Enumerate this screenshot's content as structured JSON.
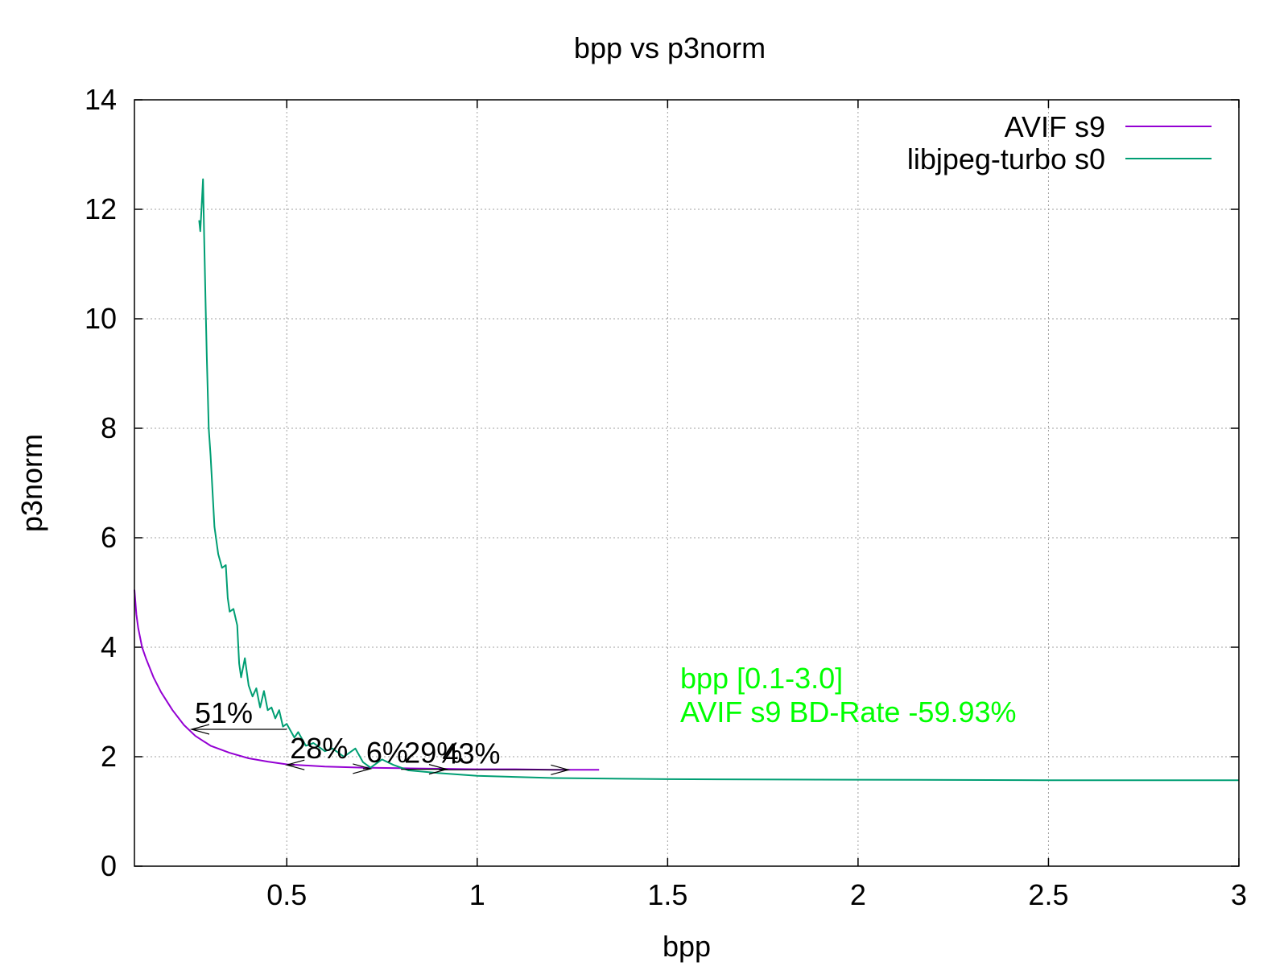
{
  "chart_data": {
    "type": "line",
    "title": "bpp vs p3norm",
    "xlabel": "bpp",
    "ylabel": "p3norm",
    "xlim": [
      0.1,
      3.0
    ],
    "ylim": [
      0,
      14
    ],
    "x_ticks": [
      0.5,
      1,
      1.5,
      2,
      2.5,
      3
    ],
    "x_tick_labels": [
      "0.5",
      "1",
      "1.5",
      "2",
      "2.5",
      "3"
    ],
    "y_ticks": [
      0,
      2,
      4,
      6,
      8,
      10,
      12,
      14
    ],
    "y_tick_labels": [
      "0",
      "2",
      "4",
      "6",
      "8",
      "10",
      "12",
      "14"
    ],
    "grid": true,
    "legend_position": "top-right",
    "series": [
      {
        "name": "AVIF s9",
        "color": "#9400d3",
        "points": [
          [
            0.1,
            5.05
          ],
          [
            0.105,
            4.6
          ],
          [
            0.11,
            4.35
          ],
          [
            0.12,
            4.0
          ],
          [
            0.13,
            3.8
          ],
          [
            0.15,
            3.45
          ],
          [
            0.17,
            3.18
          ],
          [
            0.2,
            2.85
          ],
          [
            0.23,
            2.58
          ],
          [
            0.26,
            2.38
          ],
          [
            0.3,
            2.2
          ],
          [
            0.35,
            2.07
          ],
          [
            0.4,
            1.97
          ],
          [
            0.45,
            1.91
          ],
          [
            0.5,
            1.86
          ],
          [
            0.6,
            1.82
          ],
          [
            0.7,
            1.8
          ],
          [
            0.8,
            1.79
          ],
          [
            0.9,
            1.78
          ],
          [
            1.0,
            1.77
          ],
          [
            1.1,
            1.77
          ],
          [
            1.2,
            1.76
          ],
          [
            1.32,
            1.76
          ]
        ]
      },
      {
        "name": "libjpeg-turbo s0",
        "color": "#009e73",
        "points": [
          [
            0.27,
            11.8
          ],
          [
            0.273,
            11.6
          ],
          [
            0.276,
            12.0
          ],
          [
            0.28,
            12.55
          ],
          [
            0.283,
            11.5
          ],
          [
            0.287,
            10.2
          ],
          [
            0.29,
            9.3
          ],
          [
            0.295,
            8.0
          ],
          [
            0.3,
            7.5
          ],
          [
            0.31,
            6.2
          ],
          [
            0.32,
            5.7
          ],
          [
            0.33,
            5.45
          ],
          [
            0.34,
            5.5
          ],
          [
            0.345,
            4.9
          ],
          [
            0.35,
            4.65
          ],
          [
            0.36,
            4.7
          ],
          [
            0.37,
            4.4
          ],
          [
            0.375,
            3.7
          ],
          [
            0.38,
            3.45
          ],
          [
            0.39,
            3.8
          ],
          [
            0.4,
            3.3
          ],
          [
            0.41,
            3.1
          ],
          [
            0.42,
            3.25
          ],
          [
            0.43,
            2.9
          ],
          [
            0.44,
            3.2
          ],
          [
            0.45,
            2.85
          ],
          [
            0.46,
            2.9
          ],
          [
            0.47,
            2.7
          ],
          [
            0.48,
            2.85
          ],
          [
            0.49,
            2.55
          ],
          [
            0.5,
            2.6
          ],
          [
            0.52,
            2.35
          ],
          [
            0.53,
            2.45
          ],
          [
            0.55,
            2.2
          ],
          [
            0.57,
            2.25
          ],
          [
            0.6,
            2.1
          ],
          [
            0.62,
            2.15
          ],
          [
            0.65,
            2.0
          ],
          [
            0.68,
            2.15
          ],
          [
            0.7,
            1.9
          ],
          [
            0.72,
            1.8
          ],
          [
            0.75,
            1.95
          ],
          [
            0.78,
            1.85
          ],
          [
            0.82,
            1.75
          ],
          [
            0.9,
            1.7
          ],
          [
            1.0,
            1.65
          ],
          [
            1.2,
            1.61
          ],
          [
            1.5,
            1.59
          ],
          [
            2.0,
            1.58
          ],
          [
            2.5,
            1.57
          ],
          [
            3.0,
            1.57
          ]
        ]
      }
    ],
    "annotations": [
      {
        "label": "51%",
        "arrow_from": [
          0.5,
          2.5
        ],
        "arrow_to": [
          0.25,
          2.5
        ]
      },
      {
        "label": "28%",
        "arrow_from": [
          0.52,
          1.85
        ],
        "arrow_to": [
          0.5,
          1.85
        ]
      },
      {
        "label": "6%",
        "arrow_from": [
          0.7,
          1.78
        ],
        "arrow_to": [
          0.72,
          1.78
        ]
      },
      {
        "label": "29%",
        "arrow_from": [
          0.8,
          1.77
        ],
        "arrow_to": [
          0.92,
          1.77
        ]
      },
      {
        "label": "43%",
        "arrow_from": [
          0.9,
          1.76
        ],
        "arrow_to": [
          1.24,
          1.76
        ]
      }
    ],
    "bd_rate": {
      "line1": "bpp [0.1-3.0]",
      "line2": "AVIF s9 BD-Rate -59.93%",
      "color": "#00ff00"
    }
  }
}
